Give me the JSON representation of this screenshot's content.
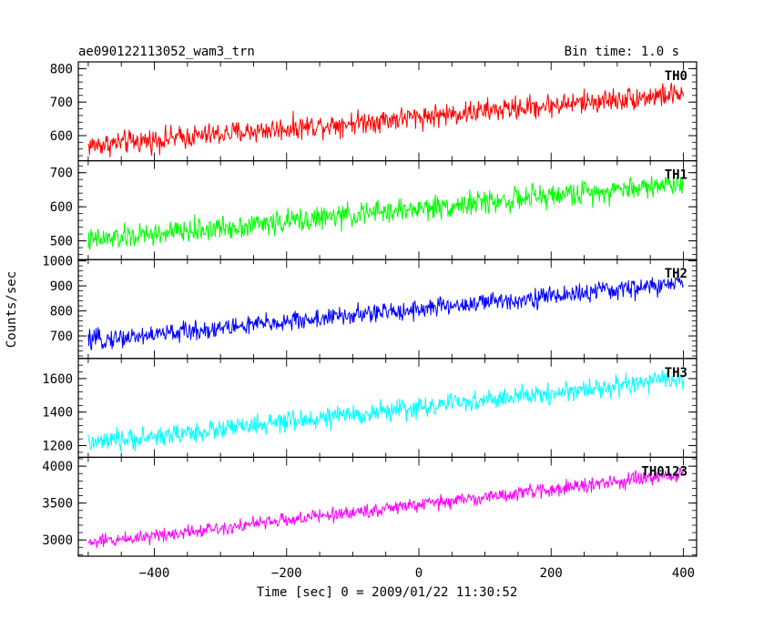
{
  "header": {
    "left_title": "ae090122113052_wam3_trn",
    "right_title": "Bin time: 1.0 s"
  },
  "chart_data": {
    "type": "line",
    "ylabel": "Counts/sec",
    "xlabel": "Time [sec] 0 = 2009/01/22 11:30:52",
    "xlim": [
      -515,
      420
    ],
    "x_ticks": [
      -400,
      -200,
      0,
      200,
      400
    ],
    "x_tick_labels": [
      "−400",
      "−200",
      "0",
      "200",
      "400"
    ],
    "x_range": [
      -500,
      400
    ],
    "bin_time_s": 1.0,
    "panels": [
      {
        "name": "TH0",
        "color": "#ff0000",
        "ylim": [
          525,
          820
        ],
        "y_ticks": [
          600,
          700,
          800
        ],
        "trend_start": 570,
        "trend_end": 725,
        "noise_amplitude": 40
      },
      {
        "name": "TH1",
        "color": "#00ff00",
        "ylim": [
          445,
          735
        ],
        "y_ticks": [
          500,
          600,
          700
        ],
        "trend_start": 500,
        "trend_end": 670,
        "noise_amplitude": 40
      },
      {
        "name": "TH2",
        "color": "#0000ff",
        "ylim": [
          610,
          1005
        ],
        "y_ticks": [
          700,
          800,
          900,
          1000
        ],
        "trend_start": 680,
        "trend_end": 910,
        "noise_amplitude": 45
      },
      {
        "name": "TH3",
        "color": "#00ffff",
        "ylim": [
          1130,
          1720
        ],
        "y_ticks": [
          1200,
          1400,
          1600
        ],
        "trend_start": 1210,
        "trend_end": 1600,
        "noise_amplitude": 70
      },
      {
        "name": "TH0123",
        "color": "#ff00ff",
        "ylim": [
          2780,
          4120
        ],
        "y_ticks": [
          3000,
          3500,
          4000
        ],
        "trend_start": 2960,
        "trend_end": 3890,
        "noise_amplitude": 110
      }
    ]
  }
}
